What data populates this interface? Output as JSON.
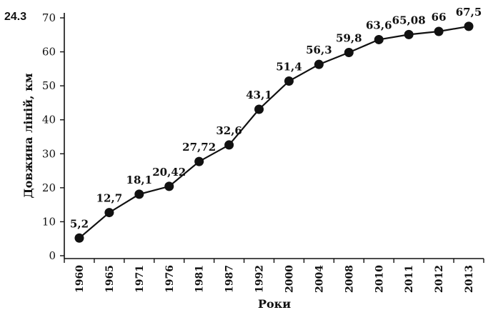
{
  "figure_label": "24.3",
  "chart_data": {
    "type": "line",
    "xlabel": "Роки",
    "ylabel": "Довжина ліній, км",
    "ylim": [
      0,
      70
    ],
    "yticks": [
      0,
      10,
      20,
      30,
      40,
      50,
      60,
      70
    ],
    "grid": false,
    "categories": [
      "1960",
      "1965",
      "1971",
      "1976",
      "1981",
      "1987",
      "1992",
      "2000",
      "2004",
      "2008",
      "2010",
      "2011",
      "2012",
      "2013"
    ],
    "values": [
      5.2,
      12.7,
      18.1,
      20.42,
      27.72,
      32.6,
      43.1,
      51.4,
      56.3,
      59.8,
      63.6,
      65.08,
      66,
      67.5
    ],
    "value_labels": [
      "5,2",
      "12,7",
      "18,1",
      "20,42",
      "27,72",
      "32,6",
      "43,1",
      "51,4",
      "56,3",
      "59,8",
      "63,6",
      "65,08",
      "66",
      "67,5"
    ]
  }
}
